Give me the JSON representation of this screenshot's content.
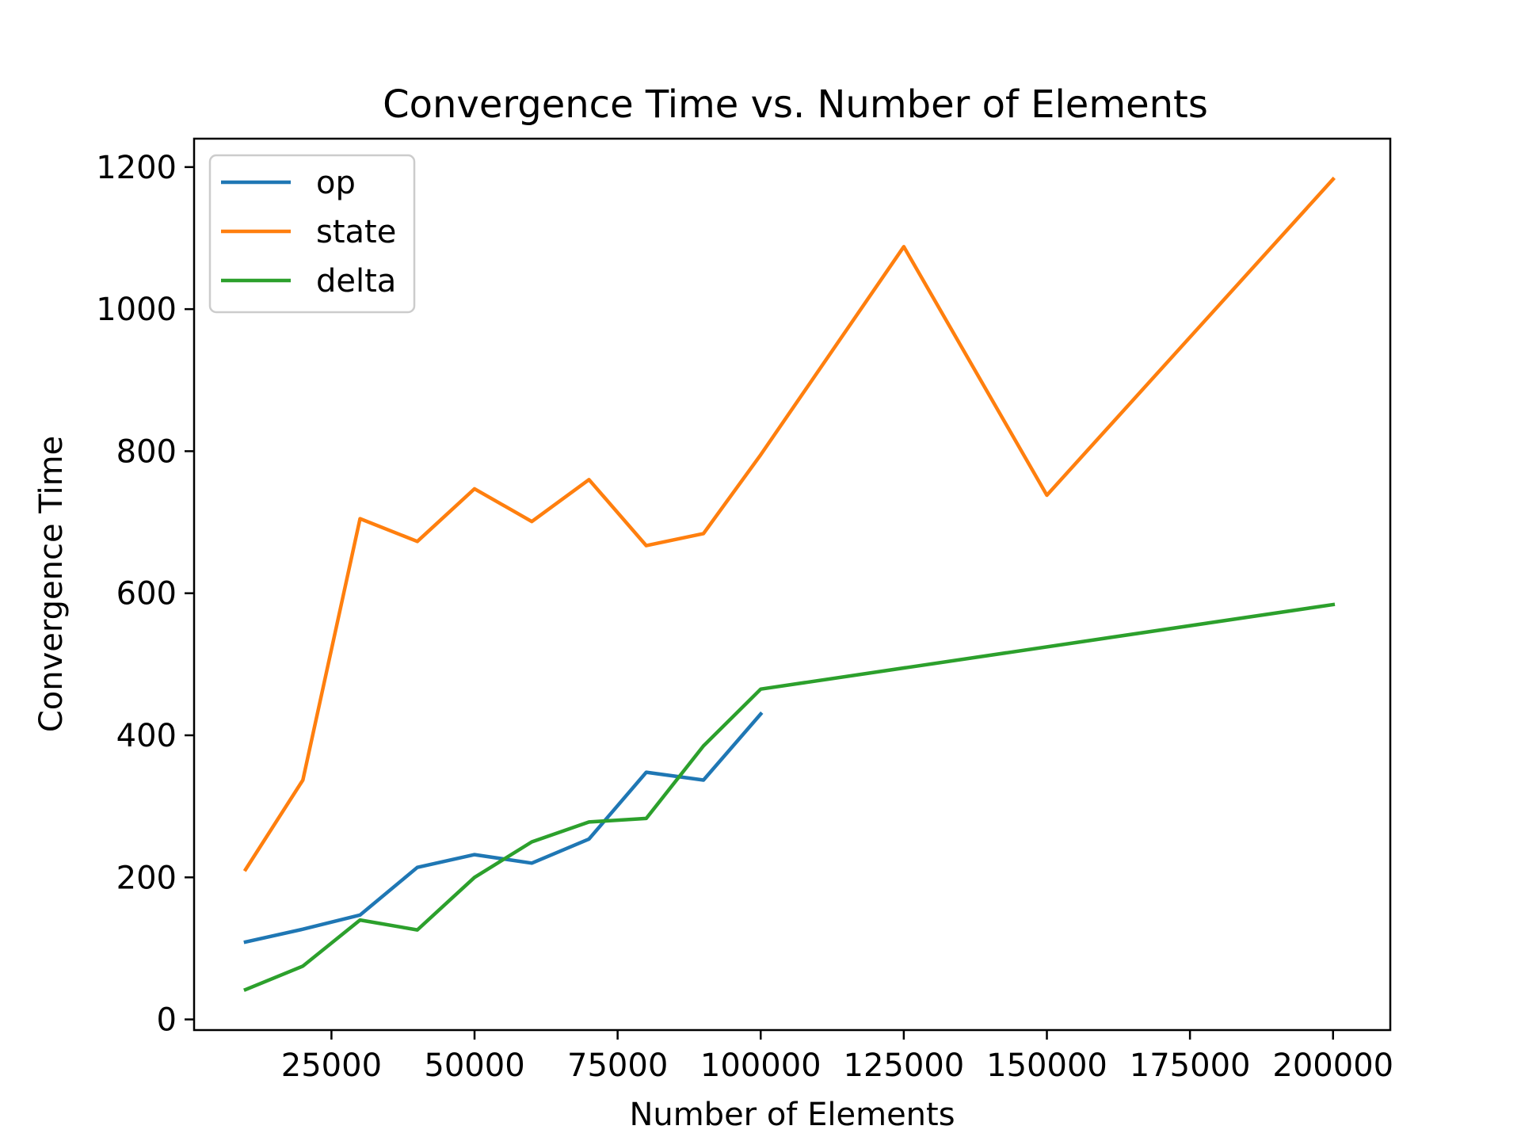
{
  "chart_data": {
    "type": "line",
    "title": "Convergence Time vs. Number of Elements",
    "xlabel": "Number of Elements",
    "ylabel": "Convergence Time",
    "xlim": [
      1000,
      210000
    ],
    "ylim": [
      -15,
      1240
    ],
    "xticks": [
      25000,
      50000,
      75000,
      100000,
      125000,
      150000,
      175000,
      200000
    ],
    "yticks": [
      0,
      200,
      400,
      600,
      800,
      1000,
      1200
    ],
    "grid": false,
    "legend_position": "upper-left",
    "series": [
      {
        "name": "op",
        "color": "#1f77b4",
        "x": [
          10000,
          20000,
          30000,
          40000,
          50000,
          60000,
          70000,
          80000,
          90000,
          100000
        ],
        "y": [
          109,
          127,
          147,
          214,
          232,
          220,
          254,
          348,
          337,
          430
        ]
      },
      {
        "name": "state",
        "color": "#ff7f0e",
        "x": [
          10000,
          20000,
          30000,
          40000,
          50000,
          60000,
          70000,
          80000,
          90000,
          100000,
          125000,
          150000,
          200000
        ],
        "y": [
          211,
          337,
          705,
          673,
          747,
          701,
          760,
          667,
          684,
          795,
          1088,
          738,
          1183
        ]
      },
      {
        "name": "delta",
        "color": "#2ca02c",
        "x": [
          10000,
          20000,
          30000,
          40000,
          50000,
          60000,
          70000,
          80000,
          90000,
          100000,
          200000
        ],
        "y": [
          42,
          75,
          140,
          126,
          200,
          250,
          278,
          283,
          385,
          465,
          584
        ]
      }
    ]
  }
}
